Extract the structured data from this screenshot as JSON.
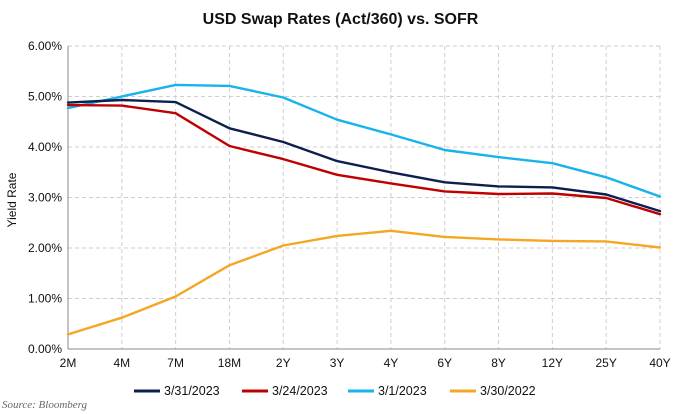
{
  "chart_data": {
    "type": "line",
    "title": "USD Swap Rates (Act/360) vs. SOFR",
    "ylabel": "Yield Rate",
    "xlabel": "",
    "categories": [
      "2M",
      "4M",
      "7M",
      "18M",
      "2Y",
      "3Y",
      "4Y",
      "6Y",
      "8Y",
      "12Y",
      "25Y",
      "40Y"
    ],
    "ylim": [
      0,
      6
    ],
    "yticks": [
      "0.00%",
      "1.00%",
      "2.00%",
      "3.00%",
      "4.00%",
      "5.00%",
      "6.00%"
    ],
    "grid": true,
    "legend_position": "bottom",
    "series": [
      {
        "name": "3/31/2023",
        "color": "#0d1f4f",
        "values": [
          4.88,
          4.93,
          4.89,
          4.37,
          4.1,
          3.72,
          3.5,
          3.3,
          3.22,
          3.2,
          3.06,
          2.73
        ]
      },
      {
        "name": "3/24/2023",
        "color": "#c00000",
        "values": [
          4.83,
          4.82,
          4.67,
          4.02,
          3.76,
          3.45,
          3.28,
          3.12,
          3.07,
          3.08,
          2.99,
          2.67
        ]
      },
      {
        "name": "3/1/2023",
        "color": "#19b3ec",
        "values": [
          4.77,
          5.0,
          5.23,
          5.21,
          4.98,
          4.54,
          4.25,
          3.94,
          3.8,
          3.68,
          3.4,
          3.02
        ]
      },
      {
        "name": "3/30/2022",
        "color": "#f5a623",
        "values": [
          0.29,
          0.62,
          1.04,
          1.66,
          2.05,
          2.24,
          2.34,
          2.22,
          2.17,
          2.14,
          2.13,
          2.01
        ]
      }
    ]
  },
  "source": "Source: Bloomberg"
}
